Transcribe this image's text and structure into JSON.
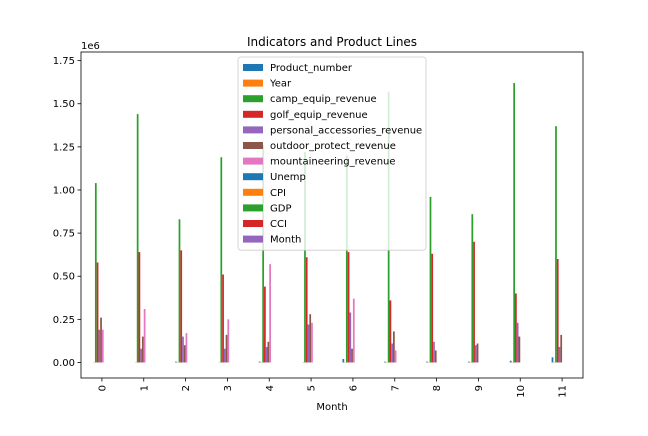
{
  "chart_data": {
    "type": "bar",
    "title": "Indicators and Product Lines",
    "xlabel": "Month",
    "ylabel": "",
    "y_scale_label": "1e6",
    "ylim": [
      -0.09,
      1.8
    ],
    "yticks": [
      0.0,
      0.25,
      0.5,
      0.75,
      1.0,
      1.25,
      1.5,
      1.75
    ],
    "ytick_labels": [
      "0.00",
      "0.25",
      "0.50",
      "0.75",
      "1.00",
      "1.25",
      "1.50",
      "1.75"
    ],
    "categories": [
      "0",
      "1",
      "2",
      "3",
      "4",
      "5",
      "6",
      "7",
      "8",
      "9",
      "10",
      "11"
    ],
    "legend_placement": "upper-center",
    "grid": false,
    "series": [
      {
        "name": "Product_number",
        "color": "#1f77b4",
        "values": [
          0.0,
          0.0,
          0.005,
          0.0,
          0.005,
          0.0,
          0.02,
          0.005,
          0.005,
          0.005,
          0.01,
          0.03
        ]
      },
      {
        "name": "Year",
        "color": "#ff7f0e",
        "values": [
          0.002,
          0.002,
          0.002,
          0.002,
          0.002,
          0.002,
          0.002,
          0.002,
          0.002,
          0.002,
          0.002,
          0.002
        ]
      },
      {
        "name": "camp_equip_revenue",
        "color": "#2ca02c",
        "values": [
          1.04,
          1.44,
          0.83,
          1.19,
          1.26,
          1.22,
          1.2,
          1.57,
          0.96,
          0.86,
          1.62,
          1.37
        ]
      },
      {
        "name": "golf_equip_revenue",
        "color": "#d62728",
        "values": [
          0.58,
          0.64,
          0.65,
          0.51,
          0.44,
          0.61,
          0.64,
          0.36,
          0.63,
          0.7,
          0.4,
          0.6
        ]
      },
      {
        "name": "personal_accessories_revenue",
        "color": "#9467bd",
        "values": [
          0.19,
          0.08,
          0.15,
          0.08,
          0.09,
          0.22,
          0.29,
          0.11,
          0.12,
          0.1,
          0.23,
          0.09
        ]
      },
      {
        "name": "outdoor_protect_revenue",
        "color": "#8c564b",
        "values": [
          0.26,
          0.15,
          0.1,
          0.16,
          0.12,
          0.28,
          0.08,
          0.18,
          0.07,
          0.11,
          0.15,
          0.16
        ]
      },
      {
        "name": "mountaineering_revenue",
        "color": "#e377c2",
        "values": [
          0.19,
          0.31,
          0.17,
          0.25,
          0.57,
          0.23,
          0.37,
          0.07,
          0.0,
          0.0,
          0.0,
          0.0
        ]
      },
      {
        "name": "Unemp",
        "color": "#1f77b4",
        "values": [
          0,
          0,
          0,
          0,
          0,
          0,
          0,
          0,
          0,
          0,
          0,
          0
        ]
      },
      {
        "name": "CPI",
        "color": "#ff7f0e",
        "values": [
          0,
          0,
          0,
          0,
          0,
          0,
          0,
          0,
          0,
          0,
          0,
          0
        ]
      },
      {
        "name": "GDP",
        "color": "#2ca02c",
        "values": [
          0,
          0,
          0,
          0,
          0,
          0,
          0,
          0,
          0,
          0,
          0,
          0
        ]
      },
      {
        "name": "CCI",
        "color": "#d62728",
        "values": [
          0,
          0,
          0,
          0,
          0,
          0,
          0,
          0,
          0,
          0,
          0,
          0
        ]
      },
      {
        "name": "Month",
        "color": "#9467bd",
        "values": [
          0,
          0,
          0,
          0,
          0,
          0,
          0,
          0,
          0,
          0,
          0,
          0
        ]
      }
    ]
  }
}
